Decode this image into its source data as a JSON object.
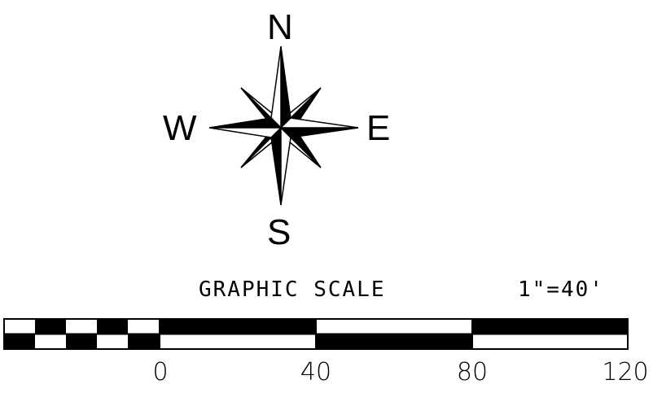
{
  "compass": {
    "north": "N",
    "south": "S",
    "east": "E",
    "west": "W"
  },
  "scale": {
    "title": "GRAPHIC SCALE",
    "ratio": "1\"=40'",
    "ticks": [
      "0",
      "40",
      "80",
      "120"
    ]
  },
  "colors": {
    "ink": "#000000",
    "paper": "#ffffff"
  }
}
